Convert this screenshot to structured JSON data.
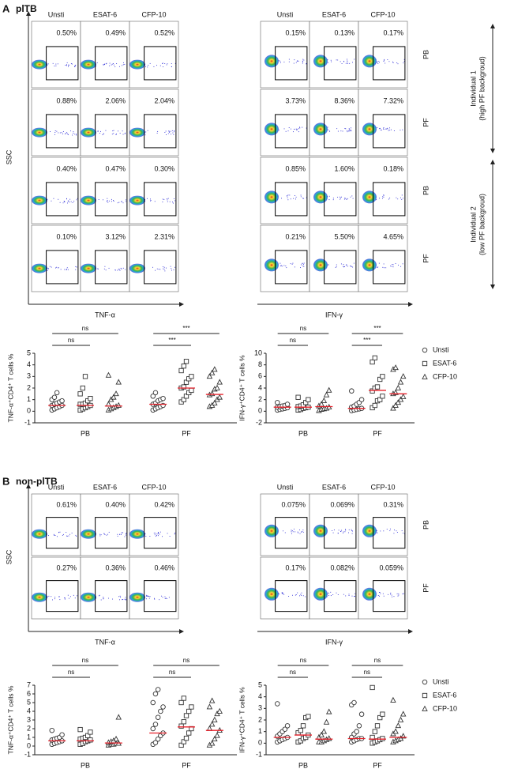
{
  "panels": [
    {
      "label": "A",
      "title": "plTB",
      "flow": {
        "y_label": "SSC",
        "groups": [
          {
            "x_label": "TNF-α",
            "columns": [
              "Unsti",
              "ESAT-6",
              "CFP-10"
            ]
          },
          {
            "x_label": "IFN-γ",
            "columns": [
              "Unsti",
              "ESAT-6",
              "CFP-10"
            ]
          }
        ],
        "rows": [
          {
            "label": "PB",
            "percents": [
              "0.50%",
              "0.49%",
              "0.52%",
              "0.15%",
              "0.13%",
              "0.17%"
            ]
          },
          {
            "label": "PF",
            "percents": [
              "0.88%",
              "2.06%",
              "2.04%",
              "3.73%",
              "8.36%",
              "7.32%"
            ]
          },
          {
            "label": "PB",
            "percents": [
              "0.40%",
              "0.47%",
              "0.30%",
              "0.85%",
              "1.60%",
              "0.18%"
            ]
          },
          {
            "label": "PF",
            "percents": [
              "0.10%",
              "3.12%",
              "2.31%",
              "0.21%",
              "5.50%",
              "4.65%"
            ]
          }
        ],
        "individuals": [
          {
            "lines": [
              "Individual 1",
              "(high PF backgroud)"
            ]
          },
          {
            "lines": [
              "Individual 2",
              "(low PF backgroud)"
            ]
          }
        ]
      },
      "legend": {
        "names": [
          "Unsti",
          "ESAT-6",
          "CFP-10"
        ],
        "markers": [
          "circle",
          "square",
          "triangle"
        ]
      },
      "dot_plots": [
        {
          "type": "scatter",
          "y_label": "TNF-α⁺CD4⁺ T cells %",
          "ylim": [
            -1,
            5
          ],
          "yticks": [
            -1,
            0,
            1,
            2,
            3,
            4,
            5
          ],
          "categories": [
            "PB",
            "PF"
          ],
          "significance": [
            [
              "ns",
              "ns"
            ],
            [
              "***",
              "***"
            ]
          ],
          "series": [
            {
              "values": [
                [
                  0.1,
                  0.2,
                  0.3,
                  0.4,
                  0.5,
                  0.5,
                  0.6,
                  0.7,
                  0.8,
                  0.9,
                  1.0,
                  1.2,
                  1.6
                ],
                [
                  0.1,
                  0.2,
                  0.3,
                  0.4,
                  0.5,
                  0.6,
                  0.7,
                  0.9,
                  1.0,
                  1.1,
                  1.3,
                  1.6
                ]
              ],
              "medians": [
                0.5,
                0.6
              ]
            },
            {
              "values": [
                [
                  0.1,
                  0.2,
                  0.3,
                  0.4,
                  0.5,
                  0.6,
                  0.6,
                  0.7,
                  0.9,
                  1.1,
                  1.5,
                  2.0,
                  3.0
                ],
                [
                  0.8,
                  1.0,
                  1.3,
                  1.6,
                  1.8,
                  2.0,
                  2.1,
                  2.5,
                  2.8,
                  3.0,
                  3.5,
                  3.9,
                  4.3
                ]
              ],
              "medians": [
                0.5,
                2.0
              ]
            },
            {
              "values": [
                [
                  0.1,
                  0.2,
                  0.3,
                  0.4,
                  0.5,
                  0.6,
                  1.0,
                  1.2,
                  1.5,
                  2.5,
                  3.1
                ],
                [
                  0.4,
                  0.5,
                  0.7,
                  1.0,
                  1.2,
                  1.4,
                  1.5,
                  1.9,
                  2.0,
                  2.5,
                  3.0,
                  3.3,
                  3.6
                ]
              ],
              "medians": [
                0.45,
                1.45
              ]
            }
          ]
        },
        {
          "type": "scatter",
          "y_label": "IFN-γ⁺CD4⁺ T cells %",
          "ylim": [
            -2,
            10
          ],
          "yticks": [
            -2,
            0,
            2,
            4,
            6,
            8,
            10
          ],
          "categories": [
            "PB",
            "PF"
          ],
          "significance": [
            [
              "ns",
              "ns"
            ],
            [
              "***",
              "***"
            ]
          ],
          "series": [
            {
              "values": [
                [
                  0.2,
                  0.3,
                  0.4,
                  0.5,
                  0.6,
                  0.7,
                  0.8,
                  0.9,
                  1.0,
                  1.2,
                  1.5
                ],
                [
                  0.1,
                  0.2,
                  0.3,
                  0.4,
                  0.5,
                  0.7,
                  0.9,
                  1.2,
                  1.5,
                  2.0,
                  3.5
                ]
              ],
              "medians": [
                0.7,
                0.5
              ]
            },
            {
              "values": [
                [
                  0.2,
                  0.3,
                  0.5,
                  0.6,
                  0.7,
                  0.8,
                  0.9,
                  1.1,
                  1.5,
                  2.0,
                  2.4
                ],
                [
                  0.6,
                  1.0,
                  1.8,
                  2.0,
                  2.6,
                  3.5,
                  4.0,
                  4.2,
                  5.5,
                  6.0,
                  8.5,
                  9.2
                ]
              ],
              "medians": [
                0.7,
                3.6
              ]
            },
            {
              "values": [
                [
                  0.1,
                  0.3,
                  0.4,
                  0.5,
                  0.7,
                  0.9,
                  1.2,
                  1.8,
                  2.8,
                  3.6
                ],
                [
                  0.5,
                  1.0,
                  1.5,
                  2.0,
                  2.5,
                  3.0,
                  3.2,
                  4.0,
                  5.0,
                  6.0,
                  7.2,
                  7.5
                ]
              ],
              "medians": [
                0.8,
                3.0
              ]
            }
          ]
        }
      ]
    },
    {
      "label": "B",
      "title": "non-plTB",
      "flow": {
        "y_label": "SSC",
        "groups": [
          {
            "x_label": "TNF-α",
            "columns": [
              "Unsti",
              "ESAT-6",
              "CFP-10"
            ]
          },
          {
            "x_label": "IFN-γ",
            "columns": [
              "Unsti",
              "ESAT-6",
              "CFP-10"
            ]
          }
        ],
        "rows": [
          {
            "label": "PB",
            "percents": [
              "0.61%",
              "0.40%",
              "0.42%",
              "0.075%",
              "0.069%",
              "0.31%"
            ]
          },
          {
            "label": "PF",
            "percents": [
              "0.27%",
              "0.36%",
              "0.46%",
              "0.17%",
              "0.082%",
              "0.059%"
            ]
          }
        ],
        "individuals": []
      },
      "legend": {
        "names": [
          "Unsti",
          "ESAT-6",
          "CFP-10"
        ],
        "markers": [
          "circle",
          "square",
          "triangle"
        ]
      },
      "dot_plots": [
        {
          "type": "scatter",
          "y_label": "TNF-α⁺CD4⁺ T cells %",
          "ylim": [
            -1,
            7
          ],
          "yticks": [
            -1,
            0,
            1,
            2,
            3,
            4,
            5,
            6,
            7
          ],
          "categories": [
            "PB",
            "PF"
          ],
          "significance": [
            [
              "ns",
              "ns"
            ],
            [
              "ns",
              "ns"
            ]
          ],
          "series": [
            {
              "values": [
                [
                  0.2,
                  0.3,
                  0.4,
                  0.5,
                  0.6,
                  0.7,
                  0.8,
                  0.9,
                  1.0,
                  1.3,
                  1.8
                ],
                [
                  0.2,
                  0.4,
                  0.8,
                  1.2,
                  1.5,
                  2.0,
                  2.5,
                  3.3,
                  4.0,
                  4.5,
                  5.0,
                  6.0,
                  6.5
                ]
              ],
              "medians": [
                0.6,
                1.5
              ]
            },
            {
              "values": [
                [
                  0.2,
                  0.3,
                  0.5,
                  0.6,
                  0.7,
                  0.8,
                  0.9,
                  1.0,
                  1.2,
                  1.6,
                  1.9
                ],
                [
                  0.1,
                  0.5,
                  0.9,
                  1.5,
                  2.0,
                  2.3,
                  2.8,
                  3.5,
                  4.0,
                  4.5,
                  5.0,
                  5.5
                ]
              ],
              "medians": [
                0.6,
                2.2
              ]
            },
            {
              "values": [
                [
                  0.1,
                  0.2,
                  0.2,
                  0.3,
                  0.3,
                  0.4,
                  0.5,
                  0.6,
                  0.8,
                  3.3
                ],
                [
                  0.1,
                  0.3,
                  0.8,
                  1.2,
                  1.8,
                  2.0,
                  2.5,
                  3.0,
                  3.7,
                  4.0,
                  4.5,
                  5.2
                ]
              ],
              "medians": [
                0.35,
                1.8
              ]
            }
          ]
        },
        {
          "type": "scatter",
          "y_label": "IFN-γ⁺CD4⁺ T cells %",
          "ylim": [
            -1,
            5
          ],
          "yticks": [
            -1,
            0,
            1,
            2,
            3,
            4,
            5
          ],
          "categories": [
            "PB",
            "PF"
          ],
          "significance": [
            [
              "ns",
              "ns"
            ],
            [
              "ns",
              "ns"
            ]
          ],
          "series": [
            {
              "values": [
                [
                  0.1,
                  0.2,
                  0.3,
                  0.4,
                  0.5,
                  0.6,
                  0.8,
                  1.0,
                  1.2,
                  1.5,
                  3.4
                ],
                [
                  0.1,
                  0.2,
                  0.3,
                  0.4,
                  0.4,
                  0.5,
                  0.8,
                  1.0,
                  1.5,
                  2.5,
                  3.3,
                  3.5
                ]
              ],
              "medians": [
                0.5,
                0.4
              ]
            },
            {
              "values": [
                [
                  0.1,
                  0.2,
                  0.4,
                  0.5,
                  0.7,
                  0.9,
                  1.1,
                  1.5,
                  2.2,
                  2.3
                ],
                [
                  0.0,
                  0.1,
                  0.2,
                  0.3,
                  0.4,
                  0.5,
                  1.0,
                  1.5,
                  2.2,
                  2.5,
                  4.8
                ]
              ],
              "medians": [
                0.7,
                0.35
              ]
            },
            {
              "values": [
                [
                  0.1,
                  0.1,
                  0.2,
                  0.3,
                  0.4,
                  0.5,
                  0.7,
                  1.0,
                  1.8,
                  2.7
                ],
                [
                  0.1,
                  0.2,
                  0.3,
                  0.4,
                  0.6,
                  0.8,
                  1.0,
                  1.5,
                  2.0,
                  2.5,
                  3.7
                ]
              ],
              "medians": [
                0.35,
                0.5
              ]
            }
          ]
        }
      ]
    }
  ]
}
